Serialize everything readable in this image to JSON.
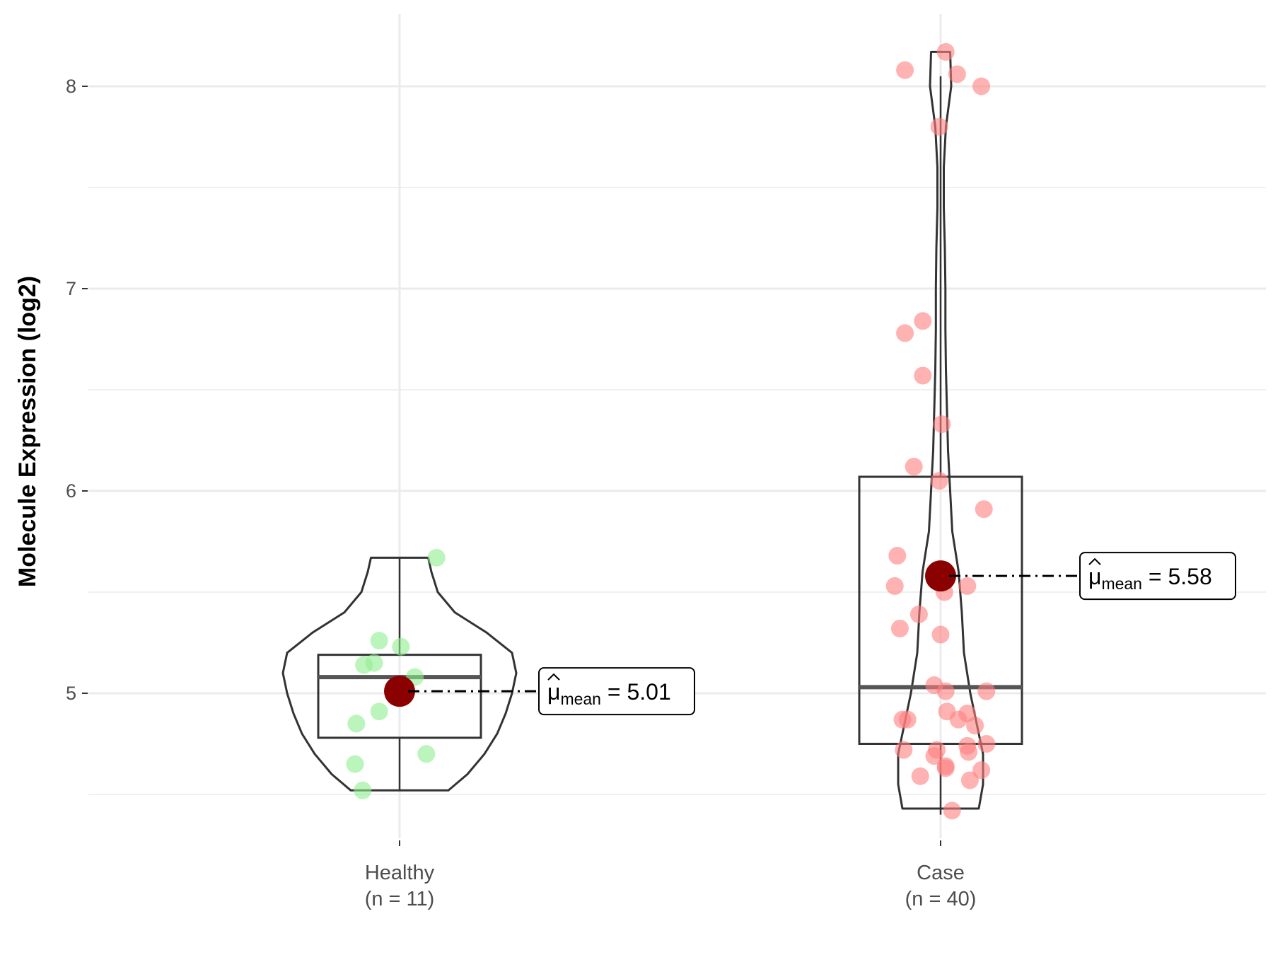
{
  "chart_data": {
    "type": "violin-box-jitter",
    "ylabel": "Molecule Expression (log2)",
    "ylim": [
      4.2,
      8.4
    ],
    "y_ticks": [
      5,
      6,
      7,
      8
    ],
    "grid": true,
    "groups": [
      {
        "name": "Healthy",
        "n_label": "(n = 11)",
        "color": "#90ee90",
        "box": {
          "q1": 4.78,
          "median": 5.08,
          "q3": 5.19,
          "whisker_low": 4.52,
          "whisker_high": 5.67
        },
        "violin": [
          {
            "y": 4.52,
            "w": 0.46
          },
          {
            "y": 4.6,
            "w": 0.64
          },
          {
            "y": 4.7,
            "w": 0.8
          },
          {
            "y": 4.8,
            "w": 0.92
          },
          {
            "y": 4.9,
            "w": 1.0
          },
          {
            "y": 5.0,
            "w": 1.06
          },
          {
            "y": 5.1,
            "w": 1.1
          },
          {
            "y": 5.2,
            "w": 1.06
          },
          {
            "y": 5.3,
            "w": 0.82
          },
          {
            "y": 5.4,
            "w": 0.52
          },
          {
            "y": 5.5,
            "w": 0.36
          },
          {
            "y": 5.6,
            "w": 0.3
          },
          {
            "y": 5.67,
            "w": 0.27
          }
        ],
        "points": [
          {
            "dx": 0.29,
            "y": 5.67
          },
          {
            "dx": -0.16,
            "y": 5.26
          },
          {
            "dx": 0.01,
            "y": 5.23
          },
          {
            "dx": -0.28,
            "y": 5.14
          },
          {
            "dx": -0.2,
            "y": 5.15
          },
          {
            "dx": 0.12,
            "y": 5.08
          },
          {
            "dx": -0.16,
            "y": 4.91
          },
          {
            "dx": -0.34,
            "y": 4.85
          },
          {
            "dx": 0.21,
            "y": 4.7
          },
          {
            "dx": -0.35,
            "y": 4.65
          },
          {
            "dx": -0.29,
            "y": 4.52
          }
        ],
        "mean": 5.01,
        "mean_label": "5.01"
      },
      {
        "name": "Case",
        "n_label": "(n = 40)",
        "color": "#ff7f7f",
        "box": {
          "q1": 4.75,
          "median": 5.03,
          "q3": 6.07,
          "whisker_low": 4.4,
          "whisker_high": 8.05
        },
        "violin": [
          {
            "y": 4.43,
            "w": 0.36
          },
          {
            "y": 4.55,
            "w": 0.4
          },
          {
            "y": 4.7,
            "w": 0.4
          },
          {
            "y": 4.85,
            "w": 0.34
          },
          {
            "y": 5.0,
            "w": 0.28
          },
          {
            "y": 5.2,
            "w": 0.22
          },
          {
            "y": 5.4,
            "w": 0.2
          },
          {
            "y": 5.6,
            "w": 0.17
          },
          {
            "y": 5.8,
            "w": 0.11
          },
          {
            "y": 6.0,
            "w": 0.09
          },
          {
            "y": 6.2,
            "w": 0.07
          },
          {
            "y": 6.4,
            "w": 0.06
          },
          {
            "y": 6.6,
            "w": 0.05
          },
          {
            "y": 6.8,
            "w": 0.045
          },
          {
            "y": 7.0,
            "w": 0.045
          },
          {
            "y": 7.2,
            "w": 0.04
          },
          {
            "y": 7.4,
            "w": 0.03
          },
          {
            "y": 7.6,
            "w": 0.03
          },
          {
            "y": 7.8,
            "w": 0.05
          },
          {
            "y": 8.0,
            "w": 0.1
          },
          {
            "y": 8.17,
            "w": 0.09
          }
        ],
        "points": [
          {
            "dx": 0.04,
            "y": 8.17
          },
          {
            "dx": -0.28,
            "y": 8.08
          },
          {
            "dx": 0.13,
            "y": 8.06
          },
          {
            "dx": 0.32,
            "y": 8.0
          },
          {
            "dx": -0.01,
            "y": 7.8
          },
          {
            "dx": -0.28,
            "y": 6.78
          },
          {
            "dx": -0.14,
            "y": 6.84
          },
          {
            "dx": -0.14,
            "y": 6.57
          },
          {
            "dx": 0.01,
            "y": 6.33
          },
          {
            "dx": -0.21,
            "y": 6.12
          },
          {
            "dx": -0.01,
            "y": 6.05
          },
          {
            "dx": 0.34,
            "y": 5.91
          },
          {
            "dx": -0.34,
            "y": 5.68
          },
          {
            "dx": -0.36,
            "y": 5.53
          },
          {
            "dx": 0.21,
            "y": 5.53
          },
          {
            "dx": 0.03,
            "y": 5.5
          },
          {
            "dx": -0.32,
            "y": 5.32
          },
          {
            "dx": -0.17,
            "y": 5.39
          },
          {
            "dx": 0.0,
            "y": 5.29
          },
          {
            "dx": -0.05,
            "y": 5.04
          },
          {
            "dx": 0.04,
            "y": 5.01
          },
          {
            "dx": 0.36,
            "y": 5.01
          },
          {
            "dx": -0.26,
            "y": 4.87
          },
          {
            "dx": -0.3,
            "y": 4.87
          },
          {
            "dx": 0.05,
            "y": 4.91
          },
          {
            "dx": 0.21,
            "y": 4.9
          },
          {
            "dx": 0.14,
            "y": 4.87
          },
          {
            "dx": 0.27,
            "y": 4.84
          },
          {
            "dx": -0.29,
            "y": 4.72
          },
          {
            "dx": -0.03,
            "y": 4.72
          },
          {
            "dx": 0.21,
            "y": 4.74
          },
          {
            "dx": 0.36,
            "y": 4.75
          },
          {
            "dx": 0.22,
            "y": 4.71
          },
          {
            "dx": -0.05,
            "y": 4.69
          },
          {
            "dx": 0.04,
            "y": 4.64
          },
          {
            "dx": 0.04,
            "y": 4.63
          },
          {
            "dx": 0.32,
            "y": 4.62
          },
          {
            "dx": -0.16,
            "y": 4.59
          },
          {
            "dx": 0.23,
            "y": 4.57
          },
          {
            "dx": 0.09,
            "y": 4.42
          }
        ],
        "mean": 5.58,
        "mean_label": "5.58"
      }
    ],
    "mean_symbol": "μ",
    "mean_subscript": "mean",
    "mean_point_color": "#8b0000"
  }
}
